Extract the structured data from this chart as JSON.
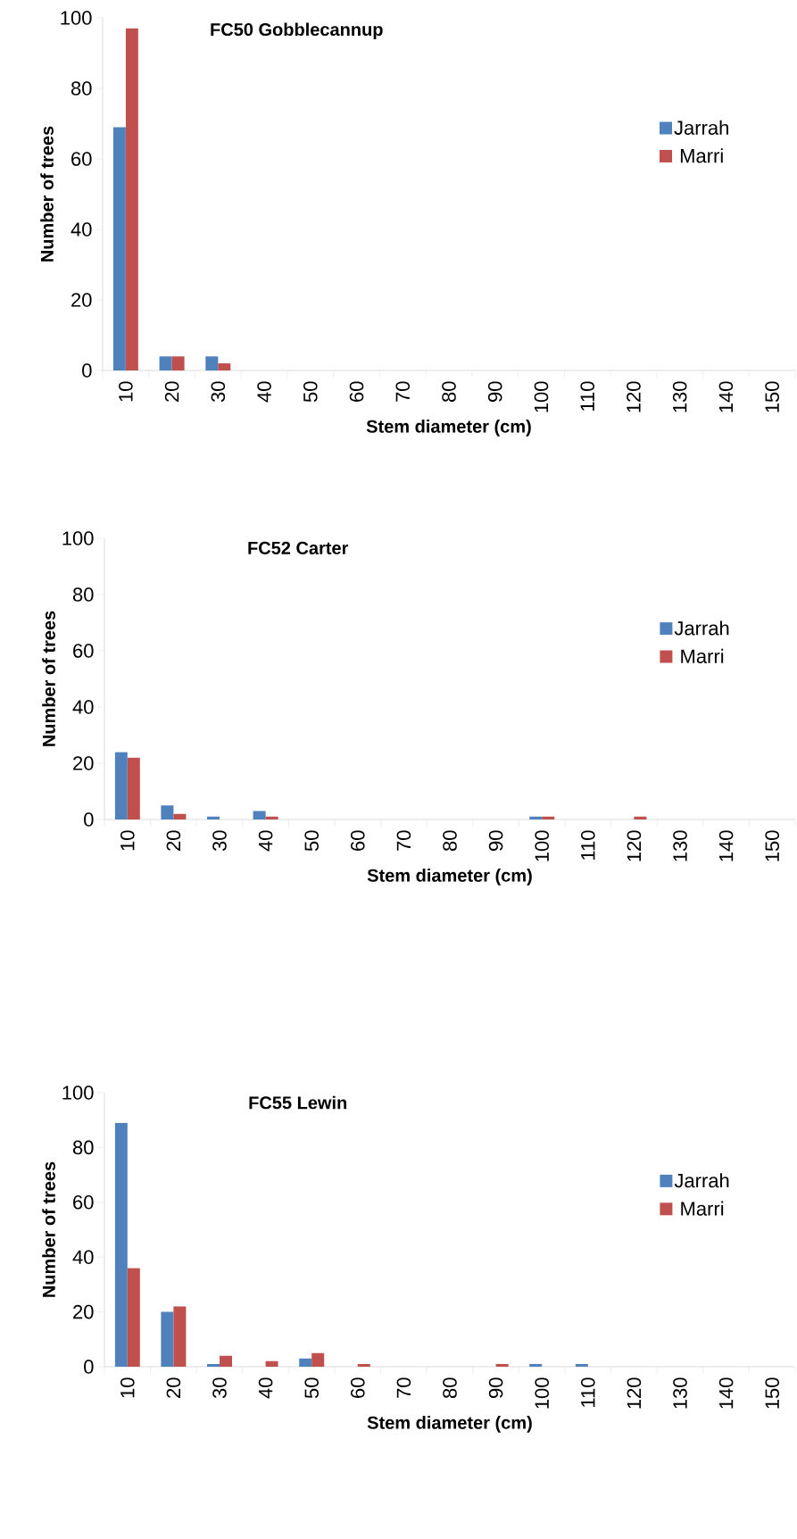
{
  "chart_data": [
    {
      "type": "bar",
      "title": "FC50 Gobblecannup",
      "xlabel": "Stem diameter (cm)",
      "ylabel": "Number of trees",
      "categories": [
        "10",
        "20",
        "30",
        "40",
        "50",
        "60",
        "70",
        "80",
        "90",
        "100",
        "110",
        "120",
        "130",
        "140",
        "150"
      ],
      "series": [
        {
          "name": "Jarrah",
          "color": "#4f81bd",
          "values": [
            69,
            4,
            4,
            0,
            0,
            0,
            0,
            0,
            0,
            0,
            0,
            0,
            0,
            0,
            0
          ]
        },
        {
          "name": "Marri",
          "color": "#c0504d",
          "values": [
            97,
            4,
            2,
            0,
            0,
            0,
            0,
            0,
            0,
            0,
            0,
            0,
            0,
            0,
            0
          ]
        }
      ],
      "ylim": [
        0,
        100
      ],
      "yticks": [
        0,
        20,
        40,
        60,
        80,
        100
      ],
      "legend": "right"
    },
    {
      "type": "bar",
      "title": "FC52 Carter",
      "xlabel": "Stem diameter (cm)",
      "ylabel": "Number of trees",
      "categories": [
        "10",
        "20",
        "30",
        "40",
        "50",
        "60",
        "70",
        "80",
        "90",
        "100",
        "110",
        "120",
        "130",
        "140",
        "150"
      ],
      "series": [
        {
          "name": "Jarrah",
          "color": "#4f81bd",
          "values": [
            24,
            5,
            1,
            3,
            0,
            0,
            0,
            0,
            0,
            1,
            0,
            0,
            0,
            0,
            0
          ]
        },
        {
          "name": "Marri",
          "color": "#c0504d",
          "values": [
            22,
            2,
            0,
            1,
            0,
            0,
            0,
            0,
            0,
            1,
            0,
            1,
            0,
            0,
            0
          ]
        }
      ],
      "ylim": [
        0,
        100
      ],
      "yticks": [
        0,
        20,
        40,
        60,
        80,
        100
      ],
      "legend": "right"
    },
    {
      "type": "bar",
      "title": "FC55 Lewin",
      "xlabel": "Stem diameter (cm)",
      "ylabel": "Number of trees",
      "categories": [
        "10",
        "20",
        "30",
        "40",
        "50",
        "60",
        "70",
        "80",
        "90",
        "100",
        "110",
        "120",
        "130",
        "140",
        "150"
      ],
      "series": [
        {
          "name": "Jarrah",
          "color": "#4f81bd",
          "values": [
            89,
            20,
            1,
            0,
            3,
            0,
            0,
            0,
            0,
            1,
            1,
            0,
            0,
            0,
            0
          ]
        },
        {
          "name": "Marri",
          "color": "#c0504d",
          "values": [
            36,
            22,
            4,
            2,
            5,
            1,
            0,
            0,
            1,
            0,
            0,
            0,
            0,
            0,
            0
          ]
        }
      ],
      "ylim": [
        0,
        100
      ],
      "yticks": [
        0,
        20,
        40,
        60,
        80,
        100
      ],
      "legend": "right"
    }
  ]
}
